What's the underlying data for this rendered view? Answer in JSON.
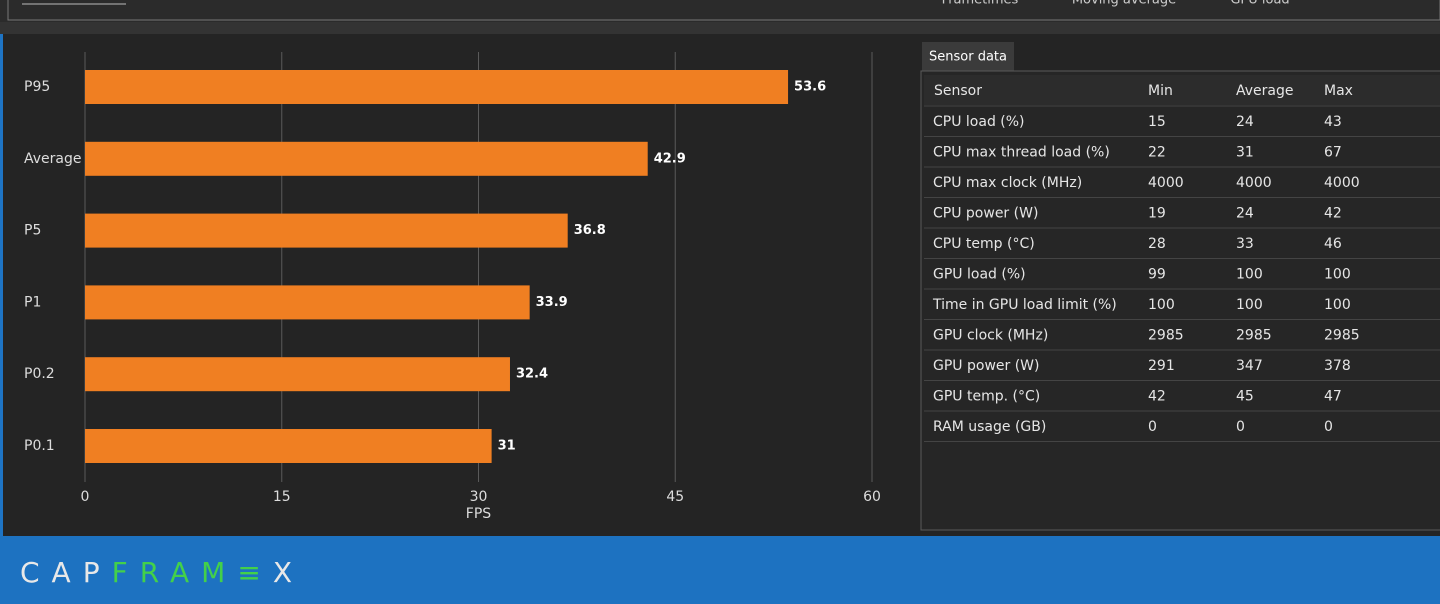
{
  "top_tabs": [
    "Frametimes",
    "Moving average",
    "GPU load"
  ],
  "chart_data": {
    "type": "bar",
    "orientation": "horizontal",
    "categories": [
      "P95",
      "Average",
      "P5",
      "P1",
      "P0.2",
      "P0.1"
    ],
    "values": [
      53.6,
      42.9,
      36.8,
      33.9,
      32.4,
      31
    ],
    "color": "#f07f22",
    "xlim": [
      0,
      60
    ],
    "xticks": [
      0,
      15,
      30,
      45,
      60
    ],
    "xlabel": "FPS",
    "grid": true
  },
  "sensor_panel": {
    "tab": "Sensor data",
    "header": [
      "Sensor",
      "Min",
      "Average",
      "Max"
    ],
    "rows": [
      [
        "CPU load (%)",
        15,
        24,
        43
      ],
      [
        "CPU max thread load (%)",
        22,
        31,
        67
      ],
      [
        "CPU max clock (MHz)",
        4000,
        4000,
        4000
      ],
      [
        "CPU power (W)",
        19,
        24,
        42
      ],
      [
        "CPU temp (°C)",
        28,
        33,
        46
      ],
      [
        "GPU load (%)",
        99,
        100,
        100
      ],
      [
        "Time in GPU load limit (%)",
        100,
        100,
        100
      ],
      [
        "GPU clock (MHz)",
        2985,
        2985,
        2985
      ],
      [
        "GPU power (W)",
        291,
        347,
        378
      ],
      [
        "GPU temp. (°C)",
        42,
        45,
        47
      ],
      [
        "RAM usage (GB)",
        0,
        0,
        0
      ]
    ]
  },
  "logo": {
    "prefix": "CAP",
    "highlight": "FRAM",
    "mark": "≡",
    "suffix": "X"
  }
}
